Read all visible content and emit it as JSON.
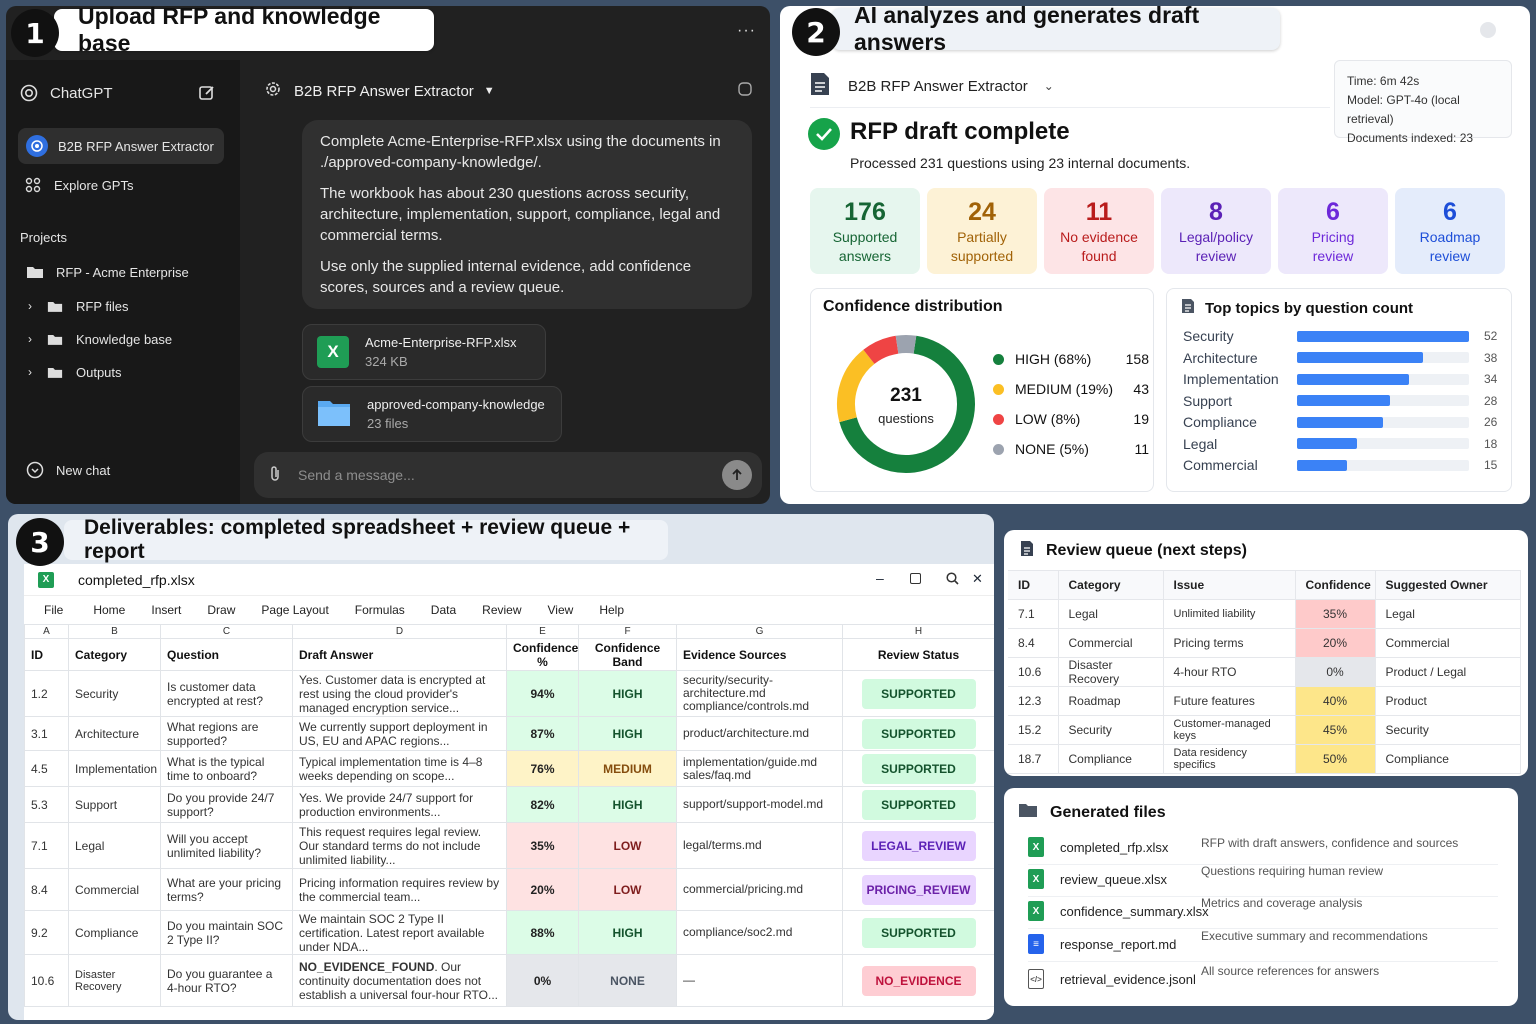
{
  "step1": {
    "num": "1",
    "title": "Upload RFP and knowledge base"
  },
  "step2": {
    "num": "2",
    "title": "AI analyzes and generates draft answers"
  },
  "step3": {
    "num": "3",
    "title": "Deliverables: completed spreadsheet + review queue + report"
  },
  "chatgpt": {
    "menu": "···",
    "sidebar": {
      "brand": "ChatGPT",
      "active": "B2B RFP Answer Extractor",
      "explore": "Explore GPTs",
      "projects_label": "Projects",
      "project": "RFP - Acme Enterprise",
      "folders": [
        "RFP files",
        "Knowledge base",
        "Outputs"
      ],
      "new_chat": "New chat"
    },
    "header": {
      "title": "B2B RFP Answer Extractor"
    },
    "message": [
      "Complete Acme-Enterprise-RFP.xlsx using the documents in ./approved-company-knowledge/.",
      "The workbook has about 230 questions across security, architecture, implementation, support, compliance, legal and commercial terms.",
      "Use only the supplied internal evidence, add confidence scores, sources and a review queue."
    ],
    "attachments": [
      {
        "name": "Acme-Enterprise-RFP.xlsx",
        "meta": "324 KB",
        "icon": "excel-icon"
      },
      {
        "name": "approved-company-knowledge",
        "meta": "23 files",
        "icon": "folder-icon"
      }
    ],
    "input_placeholder": "Send a message..."
  },
  "analysis": {
    "header": "B2B RFP Answer Extractor",
    "meta": {
      "time_label": "Time:",
      "time": "6m 42s",
      "model_label": "Model:",
      "model": "GPT-4o (local retrieval)",
      "docs_label": "Documents indexed:",
      "docs": "23"
    },
    "title": "RFP draft complete",
    "subtitle": "Processed 231 questions using 23 internal documents.",
    "stats": [
      {
        "n": "176",
        "l1": "Supported",
        "l2": "answers",
        "bg": "#e6f6ee",
        "color": "#166534"
      },
      {
        "n": "24",
        "l1": "Partially",
        "l2": "supported",
        "bg": "#fdf2d6",
        "color": "#a16207"
      },
      {
        "n": "11",
        "l1": "No evidence",
        "l2": "found",
        "bg": "#fde4e6",
        "color": "#b91c1c"
      },
      {
        "n": "8",
        "l1": "Legal/policy",
        "l2": "review",
        "bg": "#ede8fb",
        "color": "#5b21b6"
      },
      {
        "n": "6",
        "l1": "Pricing",
        "l2": "review",
        "bg": "#ede8fb",
        "color": "#6d28d9"
      },
      {
        "n": "6",
        "l1": "Roadmap",
        "l2": "review",
        "bg": "#e4ecfb",
        "color": "#1d4ed8"
      }
    ],
    "confidence": {
      "title": "Confidence distribution",
      "total": "231",
      "total_label": "questions",
      "bands": [
        {
          "label": "HIGH (68%)",
          "count": "158",
          "value": 158,
          "color": "#15803d"
        },
        {
          "label": "MEDIUM (19%)",
          "count": "43",
          "value": 43,
          "color": "#fbbf24"
        },
        {
          "label": "LOW (8%)",
          "count": "19",
          "value": 19,
          "color": "#ef4444"
        },
        {
          "label": "NONE (5%)",
          "count": "11",
          "value": 11,
          "color": "#9ca3af"
        }
      ]
    },
    "topics": {
      "title": "Top topics by question count",
      "max": 52,
      "items": [
        {
          "name": "Security",
          "value": 52
        },
        {
          "name": "Architecture",
          "value": 38
        },
        {
          "name": "Implementation",
          "value": 34
        },
        {
          "name": "Support",
          "value": 28
        },
        {
          "name": "Compliance",
          "value": 26
        },
        {
          "name": "Legal",
          "value": 18
        },
        {
          "name": "Commercial",
          "value": 15
        }
      ]
    }
  },
  "sheet": {
    "filename": "completed_rfp.xlsx",
    "menu": [
      "File",
      "Home",
      "Insert",
      "Draw",
      "Page Layout",
      "Formulas",
      "Data",
      "Review",
      "View",
      "Help"
    ],
    "col_letters": [
      "A",
      "B",
      "C",
      "D",
      "E",
      "F",
      "G",
      "H"
    ],
    "headers": [
      "ID",
      "Category",
      "Question",
      "Draft Answer",
      "Confidence %",
      "Confidence Band",
      "Evidence Sources",
      "Review Status"
    ],
    "rows": [
      {
        "id": "1.2",
        "cat": "Security",
        "q": "Is customer data encrypted at rest?",
        "a": "Yes. Customer data is encrypted at rest using the cloud provider's managed encryption service...",
        "conf": "94%",
        "band": "HIGH",
        "src": "security/security-architecture.md compliance/controls.md",
        "status": "SUPPORTED"
      },
      {
        "id": "3.1",
        "cat": "Architecture",
        "q": "What regions are supported?",
        "a": "We currently support deployment in US, EU and APAC regions...",
        "conf": "87%",
        "band": "HIGH",
        "src": "product/architecture.md",
        "status": "SUPPORTED"
      },
      {
        "id": "4.5",
        "cat": "Implementation",
        "q": "What is the typical time to onboard?",
        "a": "Typical implementation time is 4–8 weeks depending on scope...",
        "conf": "76%",
        "band": "MEDIUM",
        "src": "implementation/guide.md sales/faq.md",
        "status": "SUPPORTED"
      },
      {
        "id": "5.3",
        "cat": "Support",
        "q": "Do you provide 24/7 support?",
        "a": "Yes. We provide 24/7 support for production environments...",
        "conf": "82%",
        "band": "HIGH",
        "src": "support/support-model.md",
        "status": "SUPPORTED"
      },
      {
        "id": "7.1",
        "cat": "Legal",
        "q": "Will you accept unlimited liability?",
        "a": "This request requires legal review. Our standard terms do not include unlimited liability...",
        "conf": "35%",
        "band": "LOW",
        "src": "legal/terms.md",
        "status": "LEGAL_REVIEW"
      },
      {
        "id": "8.4",
        "cat": "Commercial",
        "q": "What are your pricing terms?",
        "a": "Pricing information requires review by the commercial team...",
        "conf": "20%",
        "band": "LOW",
        "src": "commercial/pricing.md",
        "status": "PRICING_REVIEW"
      },
      {
        "id": "9.2",
        "cat": "Compliance",
        "q": "Do you maintain SOC 2 Type II?",
        "a": "We maintain SOC 2 Type II certification. Latest report available under NDA...",
        "conf": "88%",
        "band": "HIGH",
        "src": "compliance/soc2.md",
        "status": "SUPPORTED"
      },
      {
        "id": "10.6",
        "cat": "Disaster Recovery",
        "q": "Do you guarantee a 4-hour RTO?",
        "a_bold": "NO_EVIDENCE_FOUND",
        "a": ". Our continuity documentation does not establish a universal four-hour RTO...",
        "conf": "0%",
        "band": "NONE",
        "src": "—",
        "status": "NO_EVIDENCE"
      }
    ]
  },
  "review": {
    "title": "Review queue (next steps)",
    "headers": [
      "ID",
      "Category",
      "Issue",
      "Confidence",
      "Suggested Owner"
    ],
    "rows": [
      {
        "id": "7.1",
        "cat": "Legal",
        "issue": "Unlimited liability",
        "conf": "35%",
        "owner": "Legal",
        "color": "#fecaca"
      },
      {
        "id": "8.4",
        "cat": "Commercial",
        "issue": "Pricing terms",
        "conf": "20%",
        "owner": "Commercial",
        "color": "#fecaca"
      },
      {
        "id": "10.6",
        "cat": "Disaster Recovery",
        "issue": "4-hour RTO",
        "conf": "0%",
        "owner": "Product / Legal",
        "color": "#e5e7eb"
      },
      {
        "id": "12.3",
        "cat": "Roadmap",
        "issue": "Future features",
        "conf": "40%",
        "owner": "Product",
        "color": "#fde68a"
      },
      {
        "id": "15.2",
        "cat": "Security",
        "issue": "Customer-managed keys",
        "conf": "45%",
        "owner": "Security",
        "color": "#fde68a"
      },
      {
        "id": "18.7",
        "cat": "Compliance",
        "issue": "Data residency specifics",
        "conf": "50%",
        "owner": "Compliance",
        "color": "#fde68a"
      }
    ]
  },
  "files": {
    "title": "Generated files",
    "items": [
      {
        "name": "completed_rfp.xlsx",
        "desc": "RFP with draft answers, confidence and sources",
        "icon": "excel-icon"
      },
      {
        "name": "review_queue.xlsx",
        "desc": "Questions requiring human review",
        "icon": "excel-icon"
      },
      {
        "name": "confidence_summary.xlsx",
        "desc": "Metrics and coverage analysis",
        "icon": "excel-icon"
      },
      {
        "name": "response_report.md",
        "desc": "Executive summary and recommendations",
        "icon": "doc-icon"
      },
      {
        "name": "retrieval_evidence.jsonl",
        "desc": "All source references for answers",
        "icon": "code-icon"
      }
    ]
  }
}
